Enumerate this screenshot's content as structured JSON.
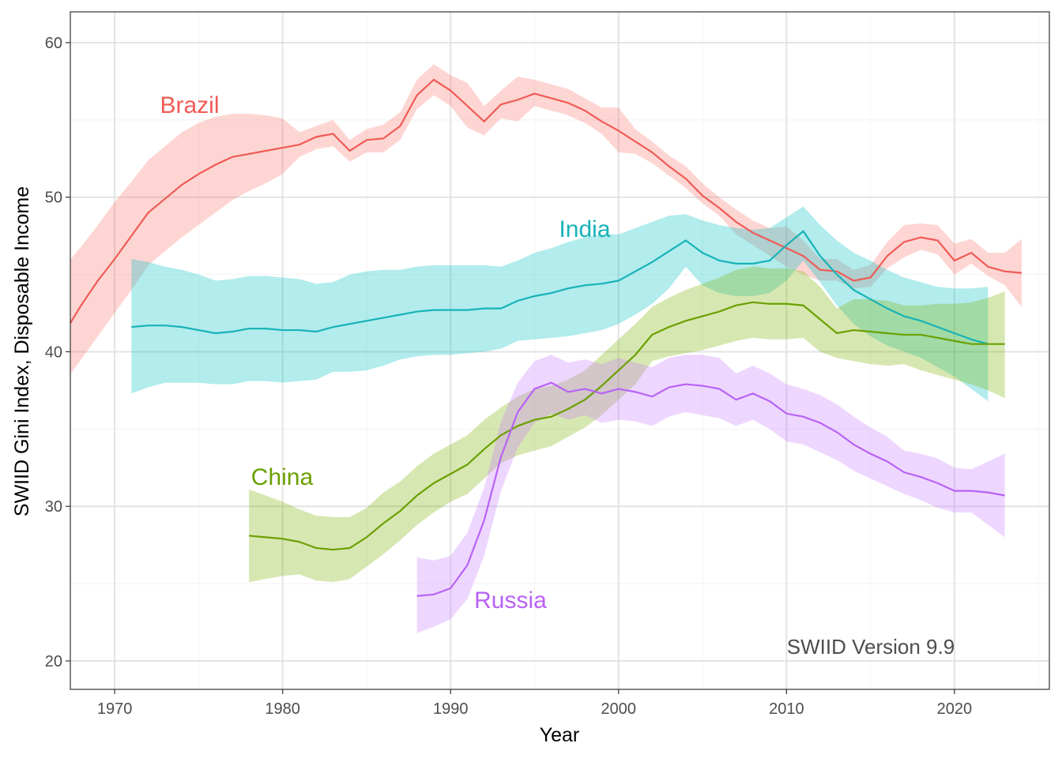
{
  "chart_data": {
    "type": "line",
    "title": "",
    "xlabel": "Year",
    "ylabel": "SWIID Gini Index, Disposable Income",
    "xlim": [
      1967.36,
      2025.65
    ],
    "ylim": [
      18.16,
      61.99
    ],
    "x_ticks": [
      1970,
      1980,
      1990,
      2000,
      2010,
      2020
    ],
    "y_ticks": [
      20,
      30,
      40,
      50,
      60
    ],
    "grid": true,
    "legend": "none (direct labels)",
    "annotation": "SWIID Version 9.9",
    "series": [
      {
        "name": "Brazil",
        "color": "#F8766D",
        "first_year": 1967,
        "last_year": 2024,
        "values": [
          41.2,
          43.0,
          44.6,
          46.0,
          47.5,
          49.0,
          49.9,
          50.8,
          51.5,
          52.1,
          52.6,
          52.8,
          53.0,
          53.2,
          53.4,
          53.9,
          54.1,
          53.0,
          53.7,
          53.8,
          54.6,
          56.6,
          57.6,
          56.9,
          55.9,
          54.9,
          56.0,
          56.3,
          56.7,
          56.4,
          56.1,
          55.6,
          54.9,
          54.3,
          53.6,
          52.9,
          52.0,
          51.2,
          50.1,
          49.3,
          48.4,
          47.7,
          47.2,
          46.7,
          46.2,
          45.3,
          45.2,
          44.6,
          44.8,
          46.2,
          47.1,
          47.4,
          47.2,
          45.9,
          46.4,
          45.5,
          45.2,
          45.1
        ],
        "lower": [
          38.0,
          39.5,
          41.0,
          42.5,
          44.0,
          45.6,
          46.5,
          47.4,
          48.2,
          49.0,
          49.8,
          50.4,
          50.9,
          51.5,
          52.6,
          53.1,
          53.3,
          52.3,
          52.9,
          52.9,
          53.7,
          55.7,
          56.6,
          55.9,
          54.5,
          54.0,
          55.1,
          54.9,
          55.9,
          55.6,
          55.3,
          54.8,
          54.1,
          52.9,
          52.8,
          52.2,
          51.4,
          50.6,
          49.6,
          48.8,
          47.6,
          46.9,
          46.2,
          45.5,
          45.0,
          44.6,
          44.6,
          44.1,
          44.2,
          45.4,
          46.1,
          46.6,
          46.3,
          45.0,
          45.7,
          44.9,
          44.3,
          42.9
        ],
        "upper": [
          45.5,
          46.8,
          48.2,
          49.7,
          51.0,
          52.4,
          53.3,
          54.2,
          54.8,
          55.2,
          55.4,
          55.4,
          55.3,
          55.1,
          54.2,
          54.6,
          55.0,
          53.7,
          54.4,
          54.7,
          55.5,
          57.6,
          58.6,
          57.9,
          57.4,
          55.9,
          56.9,
          57.8,
          57.6,
          57.3,
          57.0,
          56.4,
          55.8,
          55.8,
          54.4,
          53.6,
          52.7,
          52.0,
          50.9,
          50.0,
          49.2,
          48.5,
          48.0,
          48.1,
          47.2,
          46.0,
          46.0,
          45.3,
          45.6,
          47.1,
          48.2,
          48.3,
          48.2,
          47.0,
          47.3,
          46.4,
          46.4,
          47.3
        ]
      },
      {
        "name": "India",
        "color": "#00BFC4",
        "first_year": 1971,
        "last_year": 2022,
        "values": [
          41.6,
          41.7,
          41.7,
          41.6,
          41.4,
          41.2,
          41.3,
          41.5,
          41.5,
          41.4,
          41.4,
          41.3,
          41.6,
          41.8,
          42.0,
          42.2,
          42.4,
          42.6,
          42.7,
          42.7,
          42.7,
          42.8,
          42.8,
          43.3,
          43.6,
          43.8,
          44.1,
          44.3,
          44.4,
          44.6,
          45.2,
          45.8,
          46.5,
          47.2,
          46.4,
          45.9,
          45.7,
          45.7,
          45.9,
          46.9,
          47.8,
          46.2,
          45.0,
          44.0,
          43.4,
          42.8,
          42.3,
          42.0,
          41.6,
          41.2,
          40.8,
          40.5
        ],
        "lower": [
          37.3,
          37.7,
          38.0,
          38.0,
          38.0,
          37.9,
          37.9,
          38.1,
          38.1,
          38.0,
          38.1,
          38.2,
          38.7,
          38.7,
          38.8,
          39.1,
          39.5,
          39.7,
          39.8,
          39.8,
          39.9,
          40.0,
          40.2,
          40.7,
          40.8,
          40.9,
          41.0,
          41.2,
          41.4,
          41.8,
          42.4,
          43.1,
          44.1,
          45.5,
          44.3,
          43.8,
          43.6,
          43.6,
          43.8,
          44.6,
          45.9,
          44.5,
          43.0,
          41.8,
          41.0,
          40.4,
          40.0,
          39.6,
          39.0,
          38.4,
          37.6,
          36.8
        ],
        "upper": [
          46.0,
          45.8,
          45.5,
          45.3,
          45.0,
          44.6,
          44.7,
          44.9,
          44.9,
          44.8,
          44.7,
          44.4,
          44.5,
          45.0,
          45.2,
          45.3,
          45.3,
          45.5,
          45.6,
          45.6,
          45.6,
          45.6,
          45.5,
          45.9,
          46.4,
          46.7,
          47.1,
          47.4,
          47.6,
          47.6,
          48.0,
          48.4,
          48.8,
          48.9,
          48.5,
          48.2,
          48.0,
          47.9,
          48.0,
          48.7,
          49.4,
          48.2,
          47.2,
          46.4,
          45.9,
          45.3,
          44.8,
          44.5,
          44.2,
          44.1,
          44.1,
          44.2
        ]
      },
      {
        "name": "China",
        "color": "#7CAE00",
        "first_year": 1978,
        "last_year": 2023,
        "values": [
          28.1,
          28.0,
          27.9,
          27.7,
          27.3,
          27.2,
          27.3,
          28.0,
          28.9,
          29.7,
          30.7,
          31.5,
          32.1,
          32.7,
          33.7,
          34.6,
          35.2,
          35.6,
          35.8,
          36.3,
          36.9,
          37.8,
          38.8,
          39.8,
          41.1,
          41.6,
          42.0,
          42.3,
          42.6,
          43.0,
          43.2,
          43.1,
          43.1,
          43.0,
          42.1,
          41.2,
          41.4,
          41.3,
          41.2,
          41.1,
          41.1,
          40.9,
          40.7,
          40.5,
          40.5,
          40.5
        ],
        "lower": [
          25.1,
          25.3,
          25.5,
          25.6,
          25.2,
          25.1,
          25.3,
          26.1,
          26.9,
          27.8,
          28.8,
          29.6,
          30.3,
          30.8,
          31.8,
          32.8,
          33.3,
          33.6,
          33.9,
          34.5,
          35.1,
          35.9,
          36.9,
          37.9,
          39.4,
          39.7,
          39.9,
          40.1,
          40.4,
          40.7,
          40.9,
          40.8,
          40.8,
          40.9,
          40.0,
          39.6,
          39.4,
          39.2,
          39.1,
          39.2,
          38.8,
          38.5,
          38.2,
          37.9,
          37.5,
          37.0
        ],
        "upper": [
          31.1,
          30.7,
          30.3,
          29.8,
          29.4,
          29.3,
          29.3,
          29.9,
          30.9,
          31.6,
          32.6,
          33.4,
          34.0,
          34.6,
          35.6,
          36.4,
          37.1,
          37.6,
          37.8,
          38.2,
          38.8,
          39.8,
          40.8,
          41.8,
          42.9,
          43.5,
          44.0,
          44.4,
          44.8,
          45.3,
          45.5,
          45.4,
          45.4,
          45.2,
          44.2,
          42.8,
          43.4,
          43.4,
          43.3,
          43.0,
          43.0,
          43.1,
          43.1,
          43.2,
          43.5,
          43.9
        ]
      },
      {
        "name": "Russia",
        "color": "#C77CFF",
        "first_year": 1988,
        "last_year": 2023,
        "values": [
          24.2,
          24.3,
          24.7,
          26.2,
          29.1,
          33.2,
          36.1,
          37.6,
          38.0,
          37.4,
          37.6,
          37.3,
          37.6,
          37.4,
          37.1,
          37.7,
          37.9,
          37.8,
          37.6,
          36.9,
          37.3,
          36.8,
          36.0,
          35.8,
          35.4,
          34.8,
          34.0,
          33.4,
          32.9,
          32.2,
          31.9,
          31.5,
          31.0,
          31.0,
          30.9,
          30.7
        ],
        "lower": [
          21.8,
          22.2,
          22.7,
          24.0,
          26.8,
          31.0,
          33.8,
          35.4,
          36.0,
          35.6,
          35.9,
          35.4,
          35.6,
          35.5,
          35.2,
          35.8,
          36.1,
          35.9,
          35.7,
          35.2,
          35.6,
          35.0,
          34.2,
          34.0,
          33.5,
          33.0,
          32.3,
          31.8,
          31.3,
          30.8,
          30.4,
          29.9,
          29.6,
          29.6,
          28.8,
          28.0
        ],
        "upper": [
          26.7,
          26.5,
          26.8,
          28.3,
          31.2,
          35.5,
          38.0,
          39.4,
          39.8,
          39.3,
          39.5,
          39.2,
          39.6,
          39.3,
          39.0,
          39.6,
          39.8,
          39.8,
          39.6,
          38.6,
          39.1,
          38.6,
          37.9,
          37.6,
          37.2,
          36.6,
          35.8,
          35.1,
          34.5,
          33.6,
          33.4,
          33.1,
          32.5,
          32.4,
          32.9,
          33.4
        ]
      }
    ]
  }
}
